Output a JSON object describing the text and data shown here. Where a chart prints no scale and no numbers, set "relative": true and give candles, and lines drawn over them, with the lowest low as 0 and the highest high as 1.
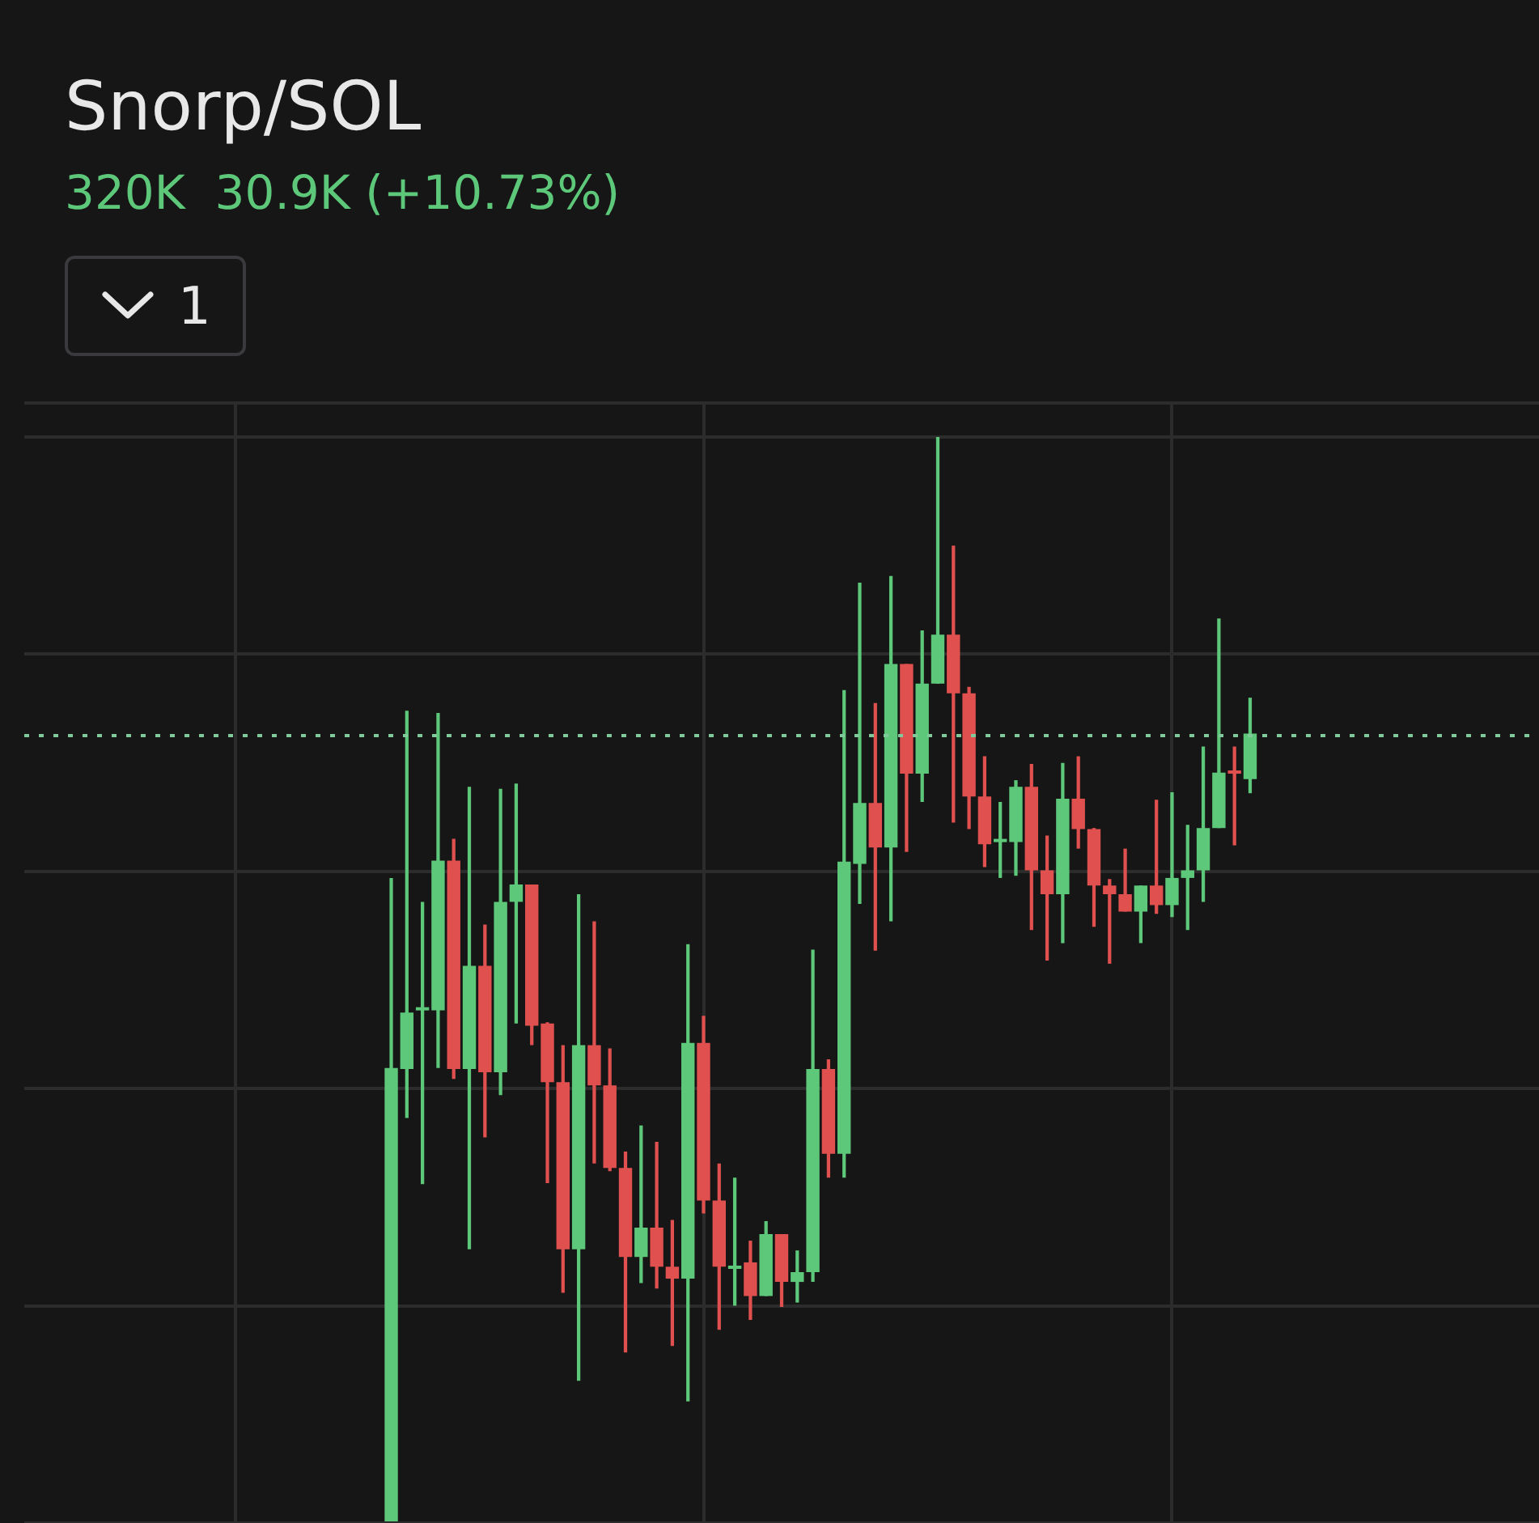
{
  "chart_data": {
    "type": "candlestick",
    "title": "Snorp/SOL",
    "subtitle": "320K  30.9K (+10.73%)",
    "annotations": [
      "1"
    ],
    "relative": true,
    "grid": true,
    "legend": false,
    "categories": [
      null,
      null,
      null,
      null,
      null,
      null,
      null,
      null,
      null,
      null,
      null,
      null,
      null,
      null,
      null,
      null,
      null,
      null,
      null,
      null,
      null,
      null,
      null,
      null,
      null,
      null,
      null,
      null,
      null,
      null,
      null,
      null,
      null,
      null,
      null,
      null,
      null,
      null,
      null,
      null,
      null,
      null,
      null,
      null,
      null,
      null,
      null,
      null,
      null,
      null,
      null,
      null,
      null,
      null,
      null,
      null,
      null,
      null,
      null,
      null,
      null,
      null,
      null,
      null,
      null,
      null,
      null,
      null,
      null,
      null,
      null,
      null,
      null,
      null,
      null,
      null,
      null,
      null,
      null,
      null,
      null,
      null,
      null,
      null,
      null,
      null,
      null,
      null,
      null,
      null,
      null,
      null,
      null,
      null,
      null,
      null,
      null
    ],
    "ohlc": [
      null,
      null,
      null,
      null,
      null,
      null,
      null,
      null,
      null,
      null,
      null,
      null,
      null,
      null,
      null,
      null,
      null,
      null,
      null,
      null,
      null,
      null,
      null,
      [
        0,
        0.594,
        0,
        0.419
      ],
      [
        0.418,
        0.748,
        0.373,
        0.47
      ],
      [
        0.472,
        0.572,
        0.312,
        0.473
      ],
      [
        0.472,
        0.746,
        0.419,
        0.61
      ],
      [
        0.61,
        0.63,
        0.409,
        0.418
      ],
      [
        0.418,
        0.678,
        0.252,
        0.513
      ],
      [
        0.513,
        0.551,
        0.355,
        0.415
      ],
      [
        0.415,
        0.676,
        0.394,
        0.572
      ],
      [
        0.572,
        0.681,
        0.46,
        0.588
      ],
      [
        0.588,
        0.588,
        0.44,
        0.458
      ],
      [
        0.46,
        0.461,
        0.313,
        0.406
      ],
      [
        0.406,
        0.44,
        0.212,
        0.252
      ],
      [
        0.252,
        0.579,
        0.131,
        0.44
      ],
      [
        0.44,
        0.554,
        0.331,
        0.403
      ],
      [
        0.403,
        0.437,
        0.324,
        0.327
      ],
      [
        0.327,
        0.342,
        0.157,
        0.245
      ],
      [
        0.245,
        0.366,
        0.221,
        0.272
      ],
      [
        0.272,
        0.351,
        0.216,
        0.236
      ],
      [
        0.236,
        0.279,
        0.163,
        0.225
      ],
      [
        0.225,
        0.533,
        0.112,
        0.442
      ],
      [
        0.442,
        0.467,
        0.285,
        0.297
      ],
      [
        0.297,
        0.331,
        0.178,
        0.236
      ],
      [
        0.234,
        0.318,
        0.2,
        0.237
      ],
      [
        0.24,
        0.26,
        0.187,
        0.209
      ],
      [
        0.209,
        0.278,
        0.209,
        0.266
      ],
      [
        0.266,
        0.266,
        0.199,
        0.222
      ],
      [
        0.222,
        0.251,
        0.203,
        0.231
      ],
      [
        0.231,
        0.528,
        0.222,
        0.418
      ],
      [
        0.418,
        0.427,
        0.318,
        0.34
      ],
      [
        0.34,
        0.767,
        0.318,
        0.609
      ],
      [
        0.607,
        0.866,
        0.57,
        0.663
      ],
      [
        0.663,
        0.755,
        0.527,
        0.622
      ],
      [
        0.622,
        0.872,
        0.554,
        0.791
      ],
      [
        0.791,
        0.791,
        0.618,
        0.69
      ],
      [
        0.69,
        0.822,
        0.664,
        0.773
      ],
      [
        0.773,
        1,
        0.773,
        0.818
      ],
      [
        0.818,
        0.9,
        0.645,
        0.764
      ],
      [
        0.764,
        0.77,
        0.639,
        0.669
      ],
      [
        0.669,
        0.706,
        0.604,
        0.625
      ],
      [
        0.627,
        0.664,
        0.594,
        0.628
      ],
      [
        0.627,
        0.684,
        0.596,
        0.678
      ],
      [
        0.678,
        0.699,
        0.546,
        0.601
      ],
      [
        0.601,
        0.633,
        0.518,
        0.579
      ],
      [
        0.579,
        0.7,
        0.534,
        0.667
      ],
      [
        0.667,
        0.706,
        0.621,
        0.639
      ],
      [
        0.639,
        0.64,
        0.549,
        0.587
      ],
      [
        0.587,
        0.593,
        0.515,
        0.579
      ],
      [
        0.579,
        0.621,
        0.563,
        0.563
      ],
      [
        0.563,
        0.587,
        0.534,
        0.587
      ],
      [
        0.587,
        0.666,
        0.561,
        0.569
      ],
      [
        0.569,
        0.673,
        0.558,
        0.594
      ],
      [
        0.594,
        0.643,
        0.546,
        0.601
      ],
      [
        0.601,
        0.715,
        0.572,
        0.64
      ],
      [
        0.64,
        0.833,
        0.64,
        0.691
      ],
      [
        0.691,
        0.715,
        0.624,
        0.69
      ],
      [
        0.685,
        0.76,
        0.672,
        0.727
      ],
      null,
      null,
      null,
      null,
      null,
      null,
      null,
      null,
      null,
      null,
      null,
      null,
      null,
      null,
      null,
      null,
      null,
      null
    ],
    "colors": [
      null,
      null,
      null,
      null,
      null,
      null,
      null,
      null,
      null,
      null,
      null,
      null,
      null,
      null,
      null,
      null,
      null,
      null,
      null,
      null,
      null,
      null,
      null,
      "#5ec87a",
      "#5ec87a",
      "#5ec87a",
      "#5ec87a",
      "#e0504f",
      "#5ec87a",
      "#e0504f",
      "#5ec87a",
      "#5ec87a",
      "#e0504f",
      "#e0504f",
      "#e0504f",
      "#5ec87a",
      "#e0504f",
      "#e0504f",
      "#e0504f",
      "#5ec87a",
      "#e0504f",
      "#e0504f",
      "#5ec87a",
      "#e0504f",
      "#e0504f",
      "#5ec87a",
      "#e0504f",
      "#5ec87a",
      "#e0504f",
      "#5ec87a",
      "#5ec87a",
      "#e0504f",
      "#5ec87a",
      "#5ec87a",
      "#e0504f",
      "#5ec87a",
      "#e0504f",
      "#5ec87a",
      "#5ec87a",
      "#e0504f",
      "#e0504f",
      "#e0504f",
      "#5ec87a",
      "#5ec87a",
      "#e0504f",
      "#e0504f",
      "#5ec87a",
      "#e0504f",
      "#e0504f",
      "#e0504f",
      "#e0504f",
      "#5ec87a",
      "#e0504f",
      "#5ec87a",
      "#5ec87a",
      "#5ec87a",
      "#5ec87a",
      "#e0504f",
      "#5ec87a",
      null,
      null,
      null,
      null,
      null,
      null,
      null,
      null,
      null,
      null,
      null,
      null,
      null,
      null,
      null,
      null,
      null,
      null
    ],
    "ref_lines": [
      {
        "axis": "y",
        "value": 0.725,
        "label": null,
        "color": "#7fc99a",
        "line_style": "dotted"
      }
    ]
  }
}
